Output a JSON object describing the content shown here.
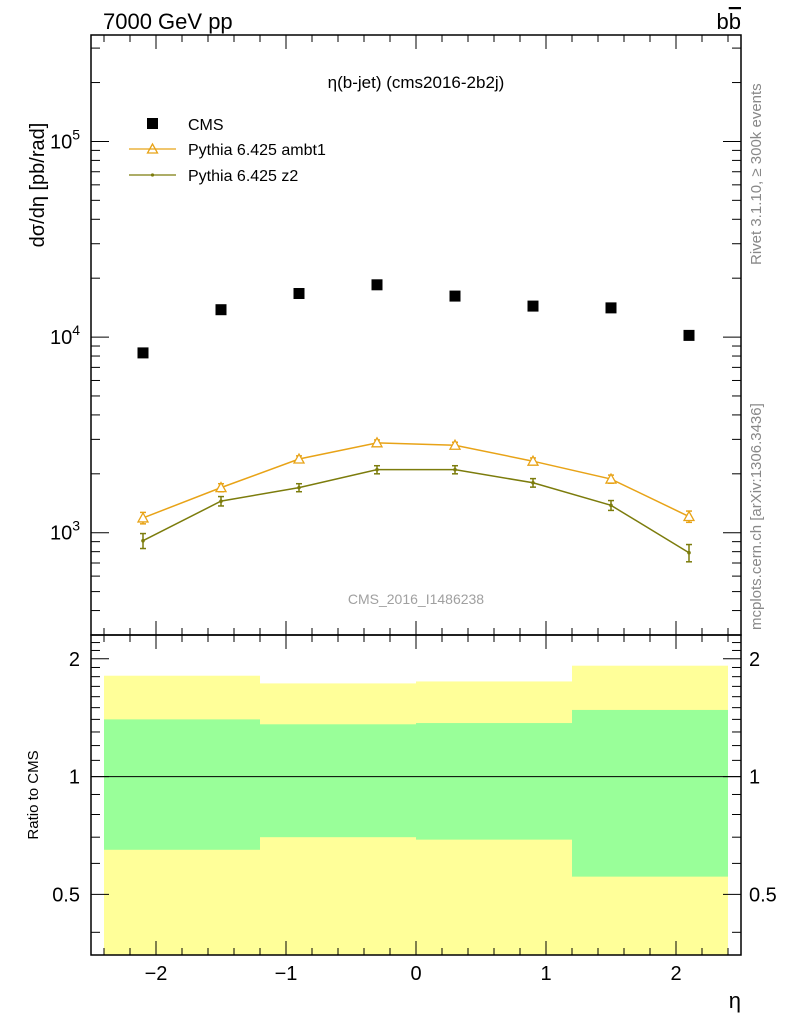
{
  "header": {
    "left": "7000 GeV pp",
    "right": "b",
    "right_bar": "b"
  },
  "side_labels": {
    "rivet": "Rivet 3.1.10, ≥ 300k events",
    "mcplots": "mcplots.cern.ch [arXiv:1306.3436]"
  },
  "main_panel": {
    "title": "η(b-jet) (cms2016-2b2j)",
    "ylabel": "dσ/dη [pb/rad]",
    "analysis_id": "CMS_2016_I1486238"
  },
  "ratio_panel": {
    "ylabel": "Ratio to CMS",
    "xlabel": "η"
  },
  "colors": {
    "data": "#000000",
    "ambt1": "#e8a317",
    "z2": "#7c7c0c",
    "band_inner": "#99ff99",
    "band_outer": "#ffff99"
  },
  "chart_data": [
    {
      "type": "scatter",
      "title": "η(b-jet) (cms2016-2b2j)",
      "xlabel": "",
      "ylabel": "dσ/dη [pb/rad]",
      "yscale": "log",
      "xlim": [
        -2.5,
        2.5
      ],
      "ylim": [
        300,
        350000
      ],
      "x_ticks": [
        -2,
        -1,
        0,
        1,
        2
      ],
      "y_tick_labels": [
        {
          "value": 1000,
          "mantissa": "10",
          "exp": "3"
        },
        {
          "value": 10000,
          "mantissa": "10",
          "exp": "4"
        },
        {
          "value": 100000,
          "mantissa": "10",
          "exp": "5"
        }
      ],
      "legend_position": "top-left",
      "legend": [
        "CMS",
        "Pythia 6.425 ambt1",
        "Pythia 6.425 z2"
      ],
      "x": [
        -2.1,
        -1.5,
        -0.9,
        -0.3,
        0.3,
        0.9,
        1.5,
        2.1
      ],
      "series": [
        {
          "name": "CMS",
          "marker": "square",
          "values": [
            8300,
            13800,
            16700,
            18500,
            16200,
            14400,
            14100,
            10200
          ]
        },
        {
          "name": "Pythia 6.425 ambt1",
          "marker": "triangle",
          "values": [
            1190,
            1700,
            2380,
            2880,
            2800,
            2320,
            1880,
            1210
          ],
          "errors": [
            80,
            80,
            90,
            100,
            100,
            90,
            90,
            80
          ]
        },
        {
          "name": "Pythia 6.425 z2",
          "marker": "dot",
          "values": [
            910,
            1450,
            1700,
            2100,
            2100,
            1800,
            1380,
            790
          ],
          "errors": [
            80,
            80,
            80,
            100,
            100,
            90,
            80,
            80
          ]
        }
      ]
    },
    {
      "type": "area",
      "title": "",
      "xlabel": "η",
      "ylabel": "Ratio to CMS",
      "yscale": "log",
      "xlim": [
        -2.5,
        2.5
      ],
      "ylim": [
        0.35,
        2.3
      ],
      "x_ticks": [
        -2,
        -1,
        0,
        1,
        2
      ],
      "y_ticks": [
        0.5,
        1,
        2
      ],
      "reference_line": 1,
      "bins": [
        -2.4,
        -1.2,
        0.0,
        1.2,
        2.4
      ],
      "inner_band_low": [
        0.65,
        0.7,
        0.69,
        0.555
      ],
      "inner_band_high": [
        1.4,
        1.36,
        1.37,
        1.48
      ],
      "outer_band_low": [
        0.35,
        0.35,
        0.35,
        0.35
      ],
      "outer_band_high": [
        1.81,
        1.73,
        1.75,
        1.92
      ]
    }
  ]
}
